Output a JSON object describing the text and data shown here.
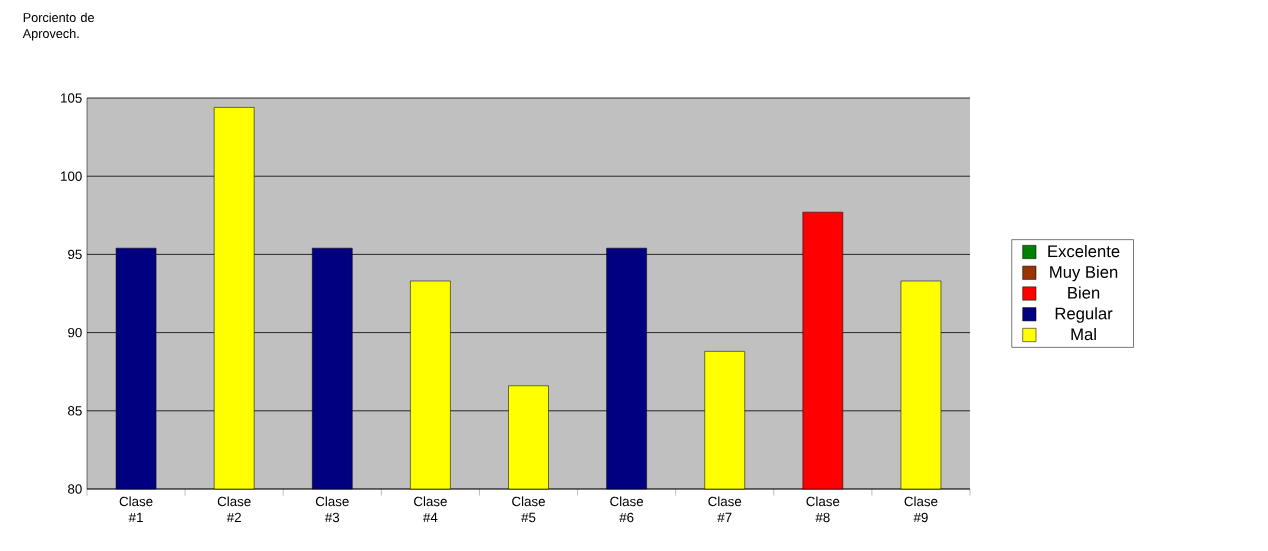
{
  "chart_data": {
    "type": "bar",
    "ylabel": "Porciento de Aprovech.",
    "categories": [
      "Clase #1",
      "Clase #2",
      "Clase #3",
      "Clase #4",
      "Clase #5",
      "Clase #6",
      "Clase #7",
      "Clase #8",
      "Clase #9"
    ],
    "series": [
      {
        "name": "Excelente",
        "color": "#008000",
        "values": [
          null,
          null,
          null,
          null,
          null,
          null,
          null,
          null,
          null
        ]
      },
      {
        "name": "Muy Bien",
        "color": "#993300",
        "values": [
          null,
          null,
          null,
          null,
          null,
          null,
          null,
          null,
          null
        ]
      },
      {
        "name": "Bien",
        "color": "#ff0000",
        "values": [
          null,
          null,
          null,
          null,
          null,
          null,
          null,
          97.7,
          null
        ]
      },
      {
        "name": "Regular",
        "color": "#000080",
        "values": [
          95.4,
          null,
          95.4,
          null,
          null,
          95.4,
          null,
          null,
          null
        ]
      },
      {
        "name": "Mal",
        "color": "#ffff00",
        "values": [
          null,
          104.4,
          null,
          93.3,
          86.6,
          null,
          88.8,
          null,
          93.3
        ]
      }
    ],
    "ylim": [
      80,
      105
    ],
    "yticks": [
      80,
      85,
      90,
      95,
      100,
      105
    ],
    "grid": "y",
    "legend": "right"
  }
}
